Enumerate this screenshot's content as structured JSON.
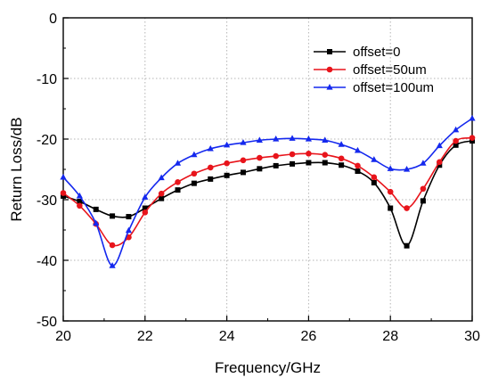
{
  "chart_data": {
    "type": "line",
    "title": "",
    "xlabel": "Frequency/GHz",
    "ylabel": "Return Loss/dB",
    "xlim": [
      20,
      30
    ],
    "ylim": [
      -50,
      0
    ],
    "x_ticks": [
      "20",
      "22",
      "24",
      "26",
      "28",
      "30"
    ],
    "y_ticks": [
      "0",
      "-10",
      "-20",
      "-30",
      "-40",
      "-50"
    ],
    "grid": true,
    "legend_position": "top-right",
    "series": [
      {
        "name": "offset=0",
        "color": "#000000",
        "marker": "square",
        "x": [
          20.0,
          20.4,
          20.8,
          21.2,
          21.6,
          22.0,
          22.4,
          22.8,
          23.2,
          23.6,
          24.0,
          24.4,
          24.8,
          25.2,
          25.6,
          26.0,
          26.4,
          26.8,
          27.2,
          27.6,
          28.0,
          28.4,
          28.8,
          29.2,
          29.6,
          30.0
        ],
        "y": [
          -29.4,
          -30.3,
          -31.6,
          -32.7,
          -32.8,
          -31.4,
          -29.8,
          -28.4,
          -27.3,
          -26.6,
          -26.0,
          -25.5,
          -24.9,
          -24.4,
          -24.1,
          -23.9,
          -23.9,
          -24.3,
          -25.3,
          -27.2,
          -31.4,
          -37.6,
          -30.2,
          -24.3,
          -21.0,
          -20.3
        ]
      },
      {
        "name": "offset=50um",
        "color": "#e8141b",
        "marker": "circle",
        "x": [
          20.0,
          20.4,
          20.8,
          21.2,
          21.6,
          22.0,
          22.4,
          22.8,
          23.2,
          23.6,
          24.0,
          24.4,
          24.8,
          25.2,
          25.6,
          26.0,
          26.4,
          26.8,
          27.2,
          27.6,
          28.0,
          28.4,
          28.8,
          29.2,
          29.6,
          30.0
        ],
        "y": [
          -28.9,
          -31.0,
          -34.0,
          -37.5,
          -36.2,
          -32.1,
          -29.0,
          -27.1,
          -25.7,
          -24.7,
          -24.0,
          -23.5,
          -23.1,
          -22.8,
          -22.5,
          -22.4,
          -22.6,
          -23.2,
          -24.4,
          -26.3,
          -28.7,
          -31.4,
          -28.2,
          -23.8,
          -20.3,
          -19.8
        ]
      },
      {
        "name": "offset=100um",
        "color": "#1428ee",
        "marker": "triangle",
        "x": [
          20.0,
          20.4,
          20.8,
          21.2,
          21.6,
          22.0,
          22.4,
          22.8,
          23.2,
          23.6,
          24.0,
          24.4,
          24.8,
          25.2,
          25.6,
          26.0,
          26.4,
          26.8,
          27.2,
          27.6,
          28.0,
          28.4,
          28.8,
          29.2,
          29.6,
          30.0
        ],
        "y": [
          -26.3,
          -29.4,
          -33.9,
          -40.9,
          -35.1,
          -29.6,
          -26.4,
          -24.0,
          -22.6,
          -21.6,
          -21.0,
          -20.6,
          -20.2,
          -20.0,
          -19.9,
          -20.0,
          -20.2,
          -20.9,
          -21.9,
          -23.4,
          -24.9,
          -25.0,
          -24.0,
          -21.1,
          -18.5,
          -16.6
        ]
      }
    ]
  }
}
